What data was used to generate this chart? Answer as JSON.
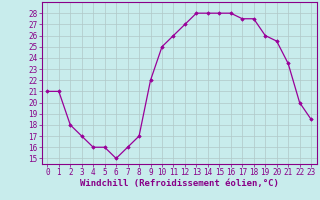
{
  "hours": [
    0,
    1,
    2,
    3,
    4,
    5,
    6,
    7,
    8,
    9,
    10,
    11,
    12,
    13,
    14,
    15,
    16,
    17,
    18,
    19,
    20,
    21,
    22,
    23
  ],
  "values": [
    21,
    21,
    18,
    17,
    16,
    16,
    15,
    16,
    17,
    22,
    25,
    26,
    27,
    28,
    28,
    28,
    28,
    27.5,
    27.5,
    26,
    25.5,
    23.5,
    20,
    18.5
  ],
  "line_color": "#990099",
  "marker": "D",
  "marker_size": 1.8,
  "line_width": 0.9,
  "bg_color": "#c8ecec",
  "grid_color": "#b0c8c8",
  "xlabel": "Windchill (Refroidissement éolien,°C)",
  "xlabel_fontsize": 6.5,
  "ylim": [
    14.5,
    29
  ],
  "yticks": [
    15,
    16,
    17,
    18,
    19,
    20,
    21,
    22,
    23,
    24,
    25,
    26,
    27,
    28
  ],
  "xticks": [
    0,
    1,
    2,
    3,
    4,
    5,
    6,
    7,
    8,
    9,
    10,
    11,
    12,
    13,
    14,
    15,
    16,
    17,
    18,
    19,
    20,
    21,
    22,
    23
  ],
  "tick_fontsize": 5.5,
  "xlim": [
    -0.5,
    23.5
  ]
}
